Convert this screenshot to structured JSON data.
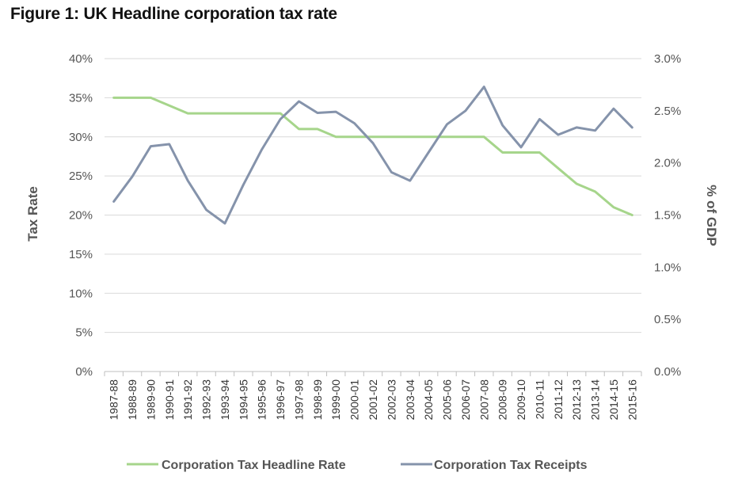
{
  "chart_data": {
    "type": "line",
    "title": "Figure 1: UK Headline corporation tax rate",
    "categories": [
      "1987-88",
      "1988-89",
      "1989-90",
      "1990-91",
      "1991-92",
      "1992-93",
      "1993-94",
      "1994-95",
      "1995-96",
      "1996-97",
      "1997-98",
      "1998-99",
      "1999-00",
      "2000-01",
      "2001-02",
      "2002-03",
      "2003-04",
      "2004-05",
      "2005-06",
      "2006-07",
      "2007-08",
      "2008-09",
      "2009-10",
      "2010-11",
      "2011-12",
      "2012-13",
      "2013-14",
      "2014-15",
      "2015-16"
    ],
    "ylabel_left": "Tax Rate",
    "ylabel_right": "% of GDP",
    "ylim_left": [
      0,
      40
    ],
    "ylim_right": [
      0,
      3.0
    ],
    "yticks_left": [
      "0%",
      "5%",
      "10%",
      "15%",
      "20%",
      "25%",
      "30%",
      "35%",
      "40%"
    ],
    "yticks_right": [
      "0.0%",
      "0.5%",
      "1.0%",
      "1.5%",
      "2.0%",
      "2.5%",
      "3.0%"
    ],
    "grid": true,
    "legend_position": "bottom",
    "series": [
      {
        "name": "Corporation Tax Headline Rate",
        "axis": "left",
        "color": "#a6d58b",
        "values": [
          35,
          35,
          35,
          34,
          33,
          33,
          33,
          33,
          33,
          33,
          31,
          31,
          30,
          30,
          30,
          30,
          30,
          30,
          30,
          30,
          30,
          28,
          28,
          28,
          26,
          24,
          23,
          21,
          20
        ]
      },
      {
        "name": "Corporation Tax Receipts",
        "axis": "right",
        "color": "#8593ab",
        "values": [
          1.63,
          1.87,
          2.16,
          2.18,
          1.83,
          1.55,
          1.42,
          1.79,
          2.13,
          2.42,
          2.59,
          2.48,
          2.49,
          2.38,
          2.19,
          1.91,
          1.83,
          2.1,
          2.37,
          2.5,
          2.73,
          2.36,
          2.15,
          2.42,
          2.27,
          2.34,
          2.31,
          2.52,
          2.34
        ]
      }
    ]
  }
}
